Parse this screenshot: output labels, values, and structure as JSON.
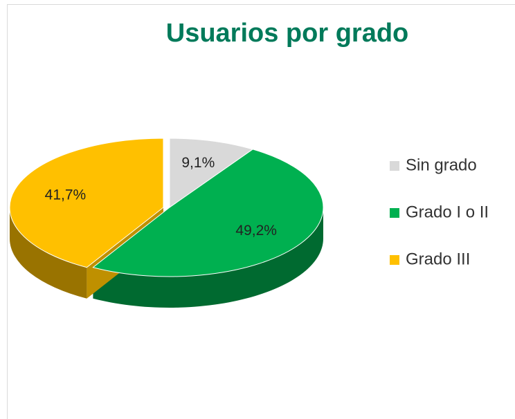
{
  "chart_data": {
    "type": "pie",
    "title": "Usuarios por grado",
    "categories": [
      "Sin grado",
      "Grado I o II",
      "Grado III"
    ],
    "values": [
      9.1,
      49.2,
      41.7
    ],
    "value_labels": [
      "9,1%",
      "49,2%",
      "41,7%"
    ],
    "colors": [
      "#d9d9d9",
      "#00b050",
      "#ffc000"
    ],
    "legend": "right"
  }
}
